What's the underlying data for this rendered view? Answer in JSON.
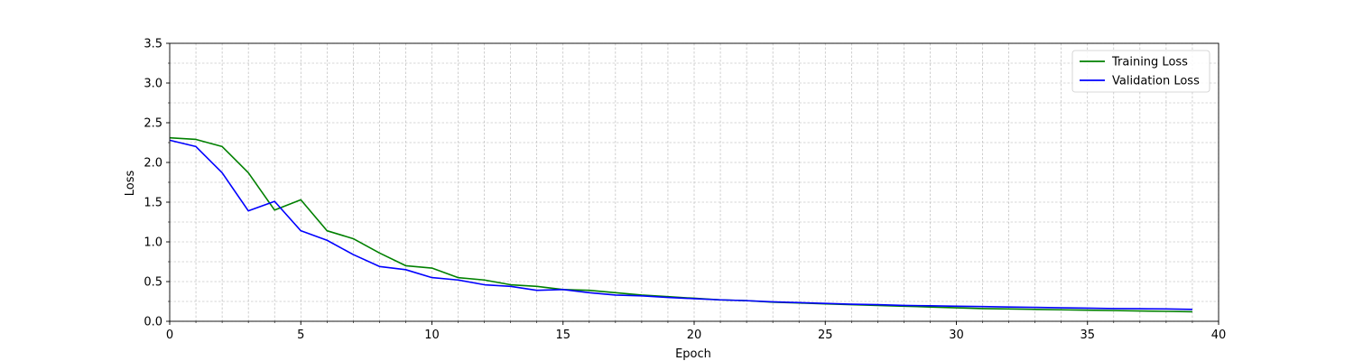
{
  "chart_data": {
    "type": "line",
    "title": "",
    "xlabel": "Epoch",
    "ylabel": "Loss",
    "xlim": [
      0,
      40
    ],
    "ylim": [
      0,
      3.5
    ],
    "xticks": [
      0,
      5,
      10,
      15,
      20,
      25,
      30,
      35,
      40
    ],
    "yticks": [
      0.0,
      0.5,
      1.0,
      1.5,
      2.0,
      2.5,
      3.0,
      3.5
    ],
    "x_minor_step": 1,
    "y_minor_step": 0.25,
    "grid": true,
    "grid_style": "dashed",
    "legend_position": "top-right",
    "x": [
      0,
      1,
      2,
      3,
      4,
      5,
      6,
      7,
      8,
      9,
      10,
      11,
      12,
      13,
      14,
      15,
      16,
      17,
      18,
      19,
      20,
      21,
      22,
      23,
      24,
      25,
      26,
      27,
      28,
      29,
      30,
      31,
      32,
      33,
      34,
      35,
      36,
      37,
      38,
      39
    ],
    "series": [
      {
        "name": "Training Loss",
        "color": "#008000",
        "values": [
          2.31,
          2.29,
          2.2,
          1.87,
          1.4,
          1.53,
          1.14,
          1.04,
          0.86,
          0.7,
          0.67,
          0.55,
          0.52,
          0.46,
          0.44,
          0.4,
          0.39,
          0.36,
          0.33,
          0.31,
          0.29,
          0.27,
          0.26,
          0.24,
          0.23,
          0.22,
          0.21,
          0.2,
          0.19,
          0.18,
          0.17,
          0.16,
          0.155,
          0.15,
          0.145,
          0.14,
          0.135,
          0.13,
          0.125,
          0.12
        ]
      },
      {
        "name": "Validation Loss",
        "color": "#0000ff",
        "values": [
          2.28,
          2.2,
          1.87,
          1.39,
          1.51,
          1.14,
          1.02,
          0.84,
          0.69,
          0.65,
          0.55,
          0.52,
          0.46,
          0.44,
          0.39,
          0.4,
          0.36,
          0.33,
          0.32,
          0.3,
          0.285,
          0.27,
          0.26,
          0.245,
          0.235,
          0.225,
          0.215,
          0.21,
          0.2,
          0.195,
          0.19,
          0.185,
          0.18,
          0.175,
          0.17,
          0.165,
          0.16,
          0.158,
          0.155,
          0.15
        ]
      }
    ]
  }
}
